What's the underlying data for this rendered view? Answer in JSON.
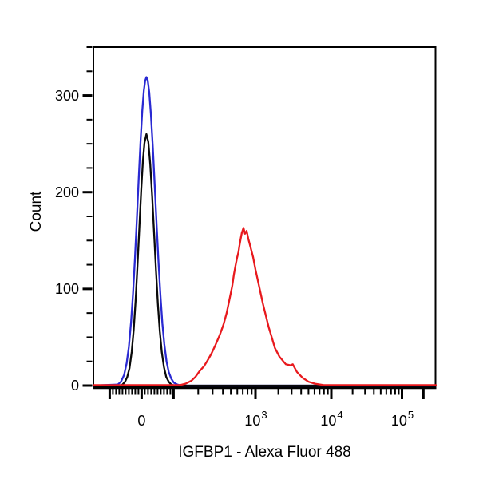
{
  "colors": {
    "background": "#ffffff",
    "axis": "#000000",
    "text": "#000000",
    "series_blue": "#2a2ad2",
    "series_black": "#0a0a0a",
    "series_red": "#e8191d"
  },
  "chart_data": {
    "type": "line",
    "subtype": "flow_cytometry_histogram_overlay",
    "title": "",
    "xlabel": "IGFBP1 - Alexa Fluor 488",
    "ylabel": "Count",
    "grid": false,
    "legend": "none",
    "x_axis": {
      "scale": "biexponential",
      "linear_limit": 100,
      "range_hint": [
        -151,
        300000
      ],
      "major_ticks": [
        -100,
        0,
        100,
        1000,
        10000,
        100000,
        200000
      ],
      "labeled_ticks": [
        {
          "value": 0,
          "base": "0",
          "exp": ""
        },
        {
          "value": 1000,
          "base": "10",
          "exp": "3"
        },
        {
          "value": 10000,
          "base": "10",
          "exp": "4"
        },
        {
          "value": 100000,
          "base": "10",
          "exp": "5"
        }
      ],
      "minor_linear": {
        "from": -90,
        "to": 90,
        "step": 10
      },
      "minor_log_decades": [
        100,
        1000,
        10000
      ]
    },
    "y_axis": {
      "range": [
        0,
        350
      ],
      "major_ticks": [
        0,
        100,
        200,
        300
      ],
      "minor_step": 25
    },
    "series": [
      {
        "name": "blue",
        "color": "#2a2ad2",
        "peak_count": 319,
        "points": [
          [
            -151,
            0
          ],
          [
            -80,
            1
          ],
          [
            -75,
            1
          ],
          [
            -65,
            4
          ],
          [
            -55,
            11
          ],
          [
            -47,
            23
          ],
          [
            -40,
            40
          ],
          [
            -33,
            66
          ],
          [
            -27,
            95
          ],
          [
            -21,
            131
          ],
          [
            -15,
            172
          ],
          [
            -9,
            215
          ],
          [
            -3,
            255
          ],
          [
            2,
            284
          ],
          [
            7,
            305
          ],
          [
            11,
            315
          ],
          [
            15,
            319
          ],
          [
            19,
            316
          ],
          [
            24,
            303
          ],
          [
            29,
            281
          ],
          [
            35,
            247
          ],
          [
            41,
            207
          ],
          [
            47,
            166
          ],
          [
            53,
            127
          ],
          [
            59,
            93
          ],
          [
            65,
            64
          ],
          [
            71,
            43
          ],
          [
            78,
            25
          ],
          [
            85,
            14
          ],
          [
            93,
            7
          ],
          [
            101,
            3
          ],
          [
            112,
            1
          ],
          [
            125,
            0
          ],
          [
            300000,
            0
          ]
        ]
      },
      {
        "name": "black",
        "color": "#0a0a0a",
        "peak_count": 260,
        "points": [
          [
            -151,
            0
          ],
          [
            -68,
            0
          ],
          [
            -60,
            1
          ],
          [
            -52,
            4
          ],
          [
            -45,
            9
          ],
          [
            -38,
            18
          ],
          [
            -31,
            35
          ],
          [
            -25,
            57
          ],
          [
            -19,
            87
          ],
          [
            -13,
            124
          ],
          [
            -7,
            164
          ],
          [
            -1,
            204
          ],
          [
            4,
            232
          ],
          [
            9,
            251
          ],
          [
            15,
            260
          ],
          [
            21,
            252
          ],
          [
            27,
            229
          ],
          [
            33,
            196
          ],
          [
            39,
            158
          ],
          [
            45,
            119
          ],
          [
            51,
            84
          ],
          [
            57,
            56
          ],
          [
            63,
            35
          ],
          [
            70,
            19
          ],
          [
            77,
            9
          ],
          [
            85,
            4
          ],
          [
            93,
            1
          ],
          [
            104,
            0
          ],
          [
            300000,
            0
          ]
        ]
      },
      {
        "name": "red",
        "color": "#e8191d",
        "peak_count": 163,
        "points": [
          [
            -151,
            1
          ],
          [
            120,
            1
          ],
          [
            140,
            2
          ],
          [
            165,
            5
          ],
          [
            185,
            9
          ],
          [
            208,
            15
          ],
          [
            235,
            20
          ],
          [
            260,
            26
          ],
          [
            290,
            33
          ],
          [
            325,
            42
          ],
          [
            365,
            52
          ],
          [
            407,
            63
          ],
          [
            445,
            75
          ],
          [
            487,
            91
          ],
          [
            520,
            103
          ],
          [
            545,
            115
          ],
          [
            570,
            124
          ],
          [
            596,
            132
          ],
          [
            620,
            138
          ],
          [
            638,
            145
          ],
          [
            660,
            152
          ],
          [
            682,
            158
          ],
          [
            714,
            163
          ],
          [
            746,
            157
          ],
          [
            781,
            160
          ],
          [
            817,
            152
          ],
          [
            853,
            146
          ],
          [
            935,
            133
          ],
          [
            1000,
            120
          ],
          [
            1129,
            101
          ],
          [
            1250,
            85
          ],
          [
            1374,
            72
          ],
          [
            1500,
            60
          ],
          [
            1625,
            51
          ],
          [
            1800,
            39
          ],
          [
            2070,
            30
          ],
          [
            2510,
            22
          ],
          [
            2905,
            21
          ],
          [
            3105,
            22
          ],
          [
            3525,
            14
          ],
          [
            4190,
            8
          ],
          [
            5010,
            4
          ],
          [
            6080,
            2
          ],
          [
            7950,
            1
          ],
          [
            300000,
            1
          ]
        ]
      }
    ]
  }
}
